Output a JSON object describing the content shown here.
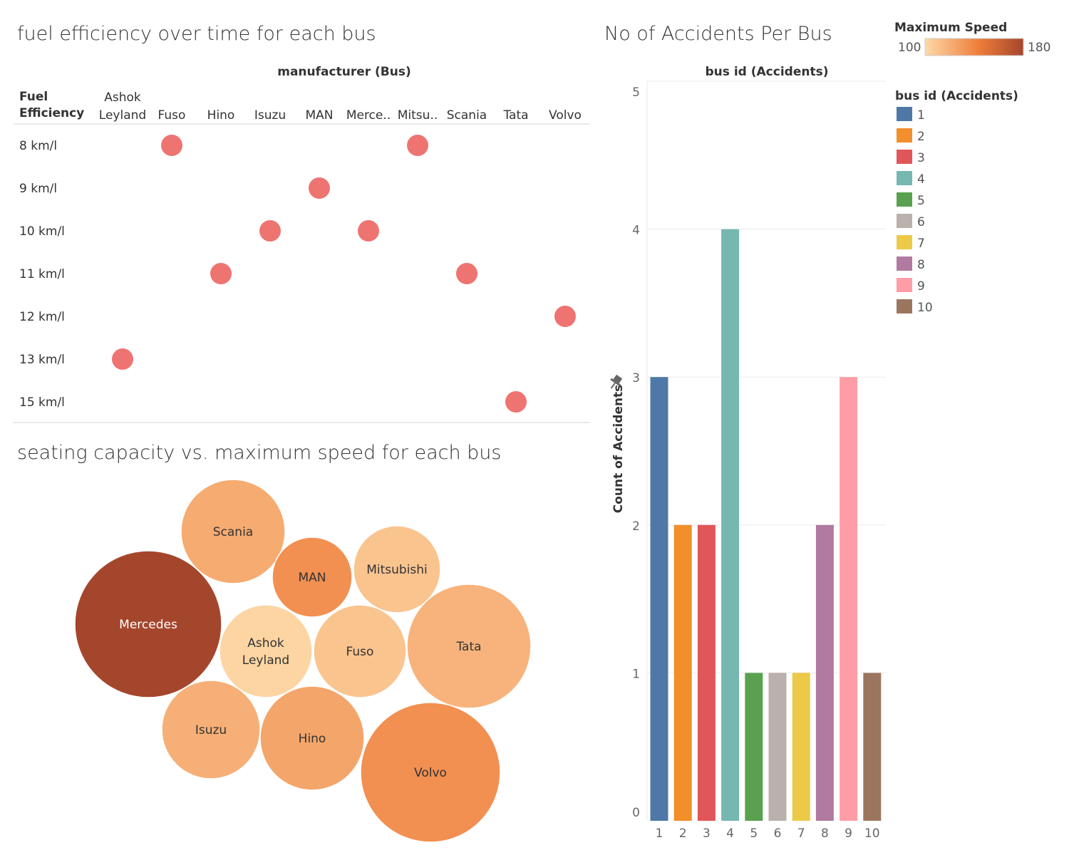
{
  "titles": {
    "fuel": "fuel efficiency over time for each bus",
    "seating": "seating capacity vs. maximum speed for each bus",
    "accidents": "No of Accidents Per Bus"
  },
  "colors": {
    "dot": "#EE7472",
    "grid": "#ECECEC",
    "speed_low": "#FDD9A8",
    "speed_high": "#A4462C"
  },
  "legends": {
    "speed": {
      "title": "Maximum Speed",
      "min": "100",
      "max": "180"
    },
    "busid": {
      "title": "bus id (Accidents)",
      "items": [
        {
          "label": "1",
          "color": "#4E79A7"
        },
        {
          "label": "2",
          "color": "#F28E2B"
        },
        {
          "label": "3",
          "color": "#E15759"
        },
        {
          "label": "4",
          "color": "#76B7B2"
        },
        {
          "label": "5",
          "color": "#59A14F"
        },
        {
          "label": "6",
          "color": "#BAB0AC"
        },
        {
          "label": "7",
          "color": "#EDC948"
        },
        {
          "label": "8",
          "color": "#B07AA1"
        },
        {
          "label": "9",
          "color": "#FF9DA7"
        },
        {
          "label": "10",
          "color": "#9C755F"
        }
      ]
    }
  },
  "chart_data": [
    {
      "type": "scatter",
      "title": "fuel efficiency over time for each bus",
      "column_header": "manufacturer (Bus)",
      "row_header": [
        "Fuel",
        "Efficiency"
      ],
      "columns": [
        {
          "lines": [
            "Ashok",
            "Leyland"
          ]
        },
        {
          "lines": [
            "Fuso"
          ]
        },
        {
          "lines": [
            "Hino"
          ]
        },
        {
          "lines": [
            "Isuzu"
          ]
        },
        {
          "lines": [
            "MAN"
          ]
        },
        {
          "lines": [
            "Merce.."
          ]
        },
        {
          "lines": [
            "Mitsu.."
          ]
        },
        {
          "lines": [
            "Scania"
          ]
        },
        {
          "lines": [
            "Tata"
          ]
        },
        {
          "lines": [
            "Volvo"
          ]
        }
      ],
      "rows": [
        "8 km/l",
        "9 km/l",
        "10 km/l",
        "11 km/l",
        "12 km/l",
        "13 km/l",
        "15 km/l"
      ],
      "points": [
        {
          "manufacturer": "Ashok Leyland",
          "efficiency": "13 km/l"
        },
        {
          "manufacturer": "Fuso",
          "efficiency": "8 km/l"
        },
        {
          "manufacturer": "Hino",
          "efficiency": "11 km/l"
        },
        {
          "manufacturer": "Isuzu",
          "efficiency": "10 km/l"
        },
        {
          "manufacturer": "MAN",
          "efficiency": "9 km/l"
        },
        {
          "manufacturer": "Mercedes",
          "efficiency": "10 km/l"
        },
        {
          "manufacturer": "Mitsubishi",
          "efficiency": "8 km/l"
        },
        {
          "manufacturer": "Scania",
          "efficiency": "11 km/l"
        },
        {
          "manufacturer": "Tata",
          "efficiency": "15 km/l"
        },
        {
          "manufacturer": "Volvo",
          "efficiency": "12 km/l"
        }
      ]
    },
    {
      "type": "bubble",
      "title": "seating capacity vs. maximum speed for each bus",
      "size_measure": "seating capacity",
      "color_measure": "Maximum Speed",
      "color_range": [
        100,
        180
      ],
      "bubbles": [
        {
          "label": "Scania",
          "lines": [
            "Scania"
          ],
          "seating": 55,
          "max_speed": 122
        },
        {
          "label": "MAN",
          "lines": [
            "MAN"
          ],
          "seating": 30,
          "max_speed": 135
        },
        {
          "label": "Mitsubishi",
          "lines": [
            "Mitsubishi"
          ],
          "seating": 36,
          "max_speed": 110
        },
        {
          "label": "Mercedes",
          "lines": [
            "Mercedes"
          ],
          "seating": 110,
          "max_speed": 180
        },
        {
          "label": "Ashok Leyland",
          "lines": [
            "Ashok",
            "Leyland"
          ],
          "seating": 42,
          "max_speed": 102
        },
        {
          "label": "Fuso",
          "lines": [
            "Fuso"
          ],
          "seating": 42,
          "max_speed": 110
        },
        {
          "label": "Tata",
          "lines": [
            "Tata"
          ],
          "seating": 76,
          "max_speed": 118
        },
        {
          "label": "Isuzu",
          "lines": [
            "Isuzu"
          ],
          "seating": 48,
          "max_speed": 120
        },
        {
          "label": "Hino",
          "lines": [
            "Hino"
          ],
          "seating": 54,
          "max_speed": 125
        },
        {
          "label": "Volvo",
          "lines": [
            "Volvo"
          ],
          "seating": 98,
          "max_speed": 135
        }
      ]
    },
    {
      "type": "bar",
      "title": "No of Accidents Per Bus",
      "header": "bus id (Accidents)",
      "ylabel": "Count of Accidents",
      "ylim": [
        0,
        5
      ],
      "yticks": [
        "0",
        "1",
        "2",
        "3",
        "4",
        "5"
      ],
      "categories": [
        "1",
        "2",
        "3",
        "4",
        "5",
        "6",
        "7",
        "8",
        "9",
        "10"
      ],
      "values": [
        3,
        2,
        2,
        4,
        1,
        1,
        1,
        2,
        3,
        1
      ]
    }
  ]
}
